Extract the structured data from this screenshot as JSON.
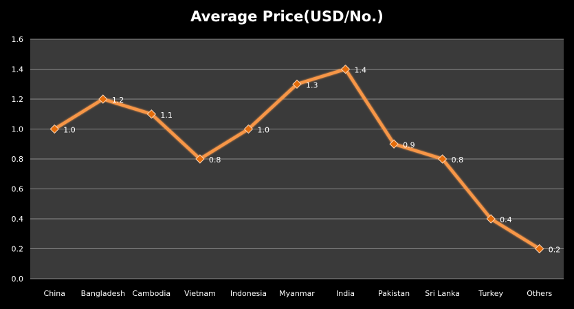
{
  "chart_data": {
    "type": "line",
    "title": "Average Price(USD/No.)",
    "xlabel": "",
    "ylabel": "",
    "categories": [
      "China",
      "Bangladesh",
      "Cambodia",
      "Vietnam",
      "Indonesia",
      "Myanmar",
      "India",
      "Pakistan",
      "Sri Lanka",
      "Turkey",
      "Others"
    ],
    "series": [
      {
        "values": [
          1.0,
          1.2,
          1.1,
          0.8,
          1.0,
          1.3,
          1.4,
          0.9,
          0.8,
          0.4,
          0.2
        ]
      }
    ],
    "data_labels": [
      "1.0",
      "1.2",
      "1.1",
      "0.8",
      "1.0",
      "1.3",
      "1.4",
      "0.9",
      "0.8",
      "0.4",
      "0.2"
    ],
    "ylim": [
      0,
      1.6
    ],
    "yticks": [
      "0.0",
      "0.2",
      "0.4",
      "0.6",
      "0.8",
      "1.0",
      "1.2",
      "1.4",
      "1.6"
    ],
    "grid": true,
    "legend": "none",
    "colors": {
      "background": "#000000",
      "plot_area": "#3a3a3a",
      "gridline": "#8c8c8c",
      "line": "#f79646",
      "marker": "#e46c0a",
      "text": "#ffffff"
    }
  }
}
